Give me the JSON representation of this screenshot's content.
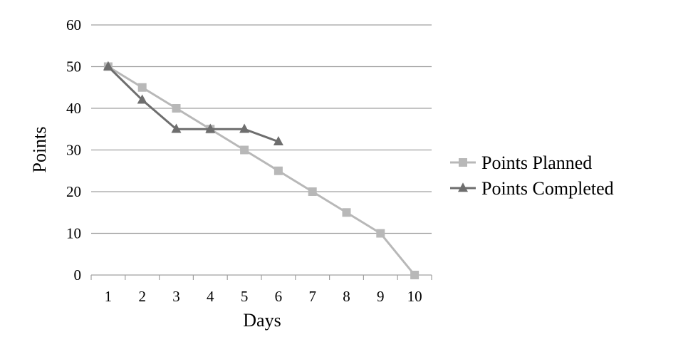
{
  "chart_data": {
    "type": "line",
    "title": "",
    "xlabel": "Days",
    "ylabel": "Points",
    "x": [
      1,
      2,
      3,
      4,
      5,
      6,
      7,
      8,
      9,
      10
    ],
    "xlim": [
      0.5,
      10.5
    ],
    "ylim": [
      0,
      60
    ],
    "yticks": [
      0,
      10,
      20,
      30,
      40,
      50,
      60
    ],
    "grid": true,
    "legend_position": "right",
    "series": [
      {
        "name": "Points Planned",
        "x": [
          1,
          2,
          3,
          4,
          5,
          6,
          7,
          8,
          9,
          10
        ],
        "values": [
          50,
          45,
          40,
          35,
          30,
          25,
          20,
          15,
          10,
          0
        ],
        "color": "#b8b8b8",
        "marker": "square"
      },
      {
        "name": "Points Completed",
        "x": [
          1,
          2,
          3,
          4,
          5,
          6
        ],
        "values": [
          50,
          42,
          35,
          35,
          35,
          32
        ],
        "color": "#6e6e6e",
        "marker": "triangle"
      }
    ],
    "gridline_color": "#a0a0a0",
    "axis_color": "#a0a0a0"
  }
}
